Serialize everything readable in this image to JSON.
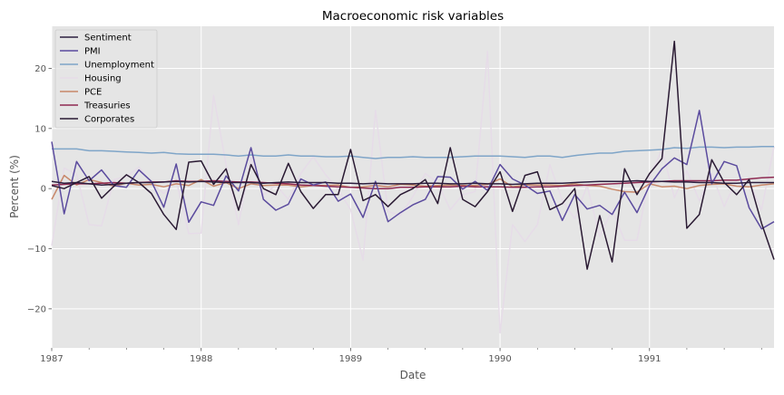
{
  "chart_data": {
    "type": "line",
    "title": "Macroeconomic risk variables",
    "xlabel": "Date",
    "ylabel": "Percent (%)",
    "xlim": [
      "1987-01",
      "1991-11"
    ],
    "ylim": [
      -26.5,
      27
    ],
    "grid": true,
    "legend_position": "top-left",
    "x_ticks": [
      "1987",
      "1988",
      "1989",
      "1990",
      "1991"
    ],
    "y_ticks": [
      -20,
      -10,
      0,
      10,
      20
    ],
    "x": [
      "1987-01",
      "1987-02",
      "1987-03",
      "1987-04",
      "1987-05",
      "1987-06",
      "1987-07",
      "1987-08",
      "1987-09",
      "1987-10",
      "1987-11",
      "1987-12",
      "1988-01",
      "1988-02",
      "1988-03",
      "1988-04",
      "1988-05",
      "1988-06",
      "1988-07",
      "1988-08",
      "1988-09",
      "1988-10",
      "1988-11",
      "1988-12",
      "1989-01",
      "1989-02",
      "1989-03",
      "1989-04",
      "1989-05",
      "1989-06",
      "1989-07",
      "1989-08",
      "1989-09",
      "1989-10",
      "1989-11",
      "1989-12",
      "1990-01",
      "1990-02",
      "1990-03",
      "1990-04",
      "1990-05",
      "1990-06",
      "1990-07",
      "1990-08",
      "1990-09",
      "1990-10",
      "1990-11",
      "1990-12",
      "1991-01",
      "1991-02",
      "1991-03",
      "1991-04",
      "1991-05",
      "1991-06",
      "1991-07",
      "1991-08",
      "1991-09",
      "1991-10",
      "1991-11"
    ],
    "series": [
      {
        "name": "Sentiment",
        "color": "#2d1e3e",
        "values": [
          1.2,
          0.9,
          1.0,
          0.8,
          0.6,
          0.7,
          0.9,
          1.0,
          1.0,
          1.1,
          1.2,
          1.1,
          1.2,
          1.1,
          1.0,
          1.0,
          1.0,
          0.9,
          1.0,
          1.1,
          1.0,
          1.0,
          1.0,
          0.9,
          0.9,
          0.8,
          0.9,
          0.8,
          0.8,
          0.8,
          0.9,
          0.9,
          0.8,
          0.8,
          0.9,
          0.8,
          0.8,
          0.7,
          0.8,
          0.9,
          0.9,
          0.9,
          1.0,
          1.1,
          1.2,
          1.2,
          1.2,
          1.3,
          1.2,
          1.2,
          1.1,
          1.1,
          1.0,
          1.0,
          0.9,
          0.9,
          1.0,
          1.0,
          1.0
        ]
      },
      {
        "name": "PMI",
        "color": "#5b4b9e",
        "values": [
          7.8,
          -4.2,
          4.5,
          1.3,
          3.1,
          0.5,
          0.2,
          3.1,
          1.2,
          -3.1,
          4.1,
          -5.6,
          -2.2,
          -2.8,
          2.1,
          -0.4,
          6.8,
          -1.8,
          -3.6,
          -2.6,
          1.6,
          0.6,
          1.1,
          -2.1,
          -0.9,
          -4.8,
          1.2,
          -5.5,
          -4.0,
          -2.7,
          -1.8,
          2.0,
          1.9,
          -0.1,
          1.2,
          -0.3,
          4.0,
          1.6,
          0.6,
          -0.8,
          -0.4,
          -5.3,
          -1.0,
          -3.4,
          -2.8,
          -4.3,
          -0.6,
          -4.0,
          0.5,
          3.3,
          5.1,
          4.0,
          13.0,
          0.8,
          4.5,
          3.8,
          -3.2,
          -6.7,
          -5.5
        ]
      },
      {
        "name": "Unemployment",
        "color": "#7fa5c8",
        "values": [
          6.6,
          6.6,
          6.6,
          6.3,
          6.3,
          6.2,
          6.1,
          6.0,
          5.9,
          6.0,
          5.8,
          5.7,
          5.7,
          5.7,
          5.6,
          5.4,
          5.6,
          5.4,
          5.4,
          5.6,
          5.4,
          5.4,
          5.3,
          5.3,
          5.4,
          5.2,
          5.0,
          5.2,
          5.2,
          5.3,
          5.2,
          5.2,
          5.2,
          5.3,
          5.4,
          5.4,
          5.4,
          5.3,
          5.2,
          5.4,
          5.4,
          5.2,
          5.5,
          5.7,
          5.9,
          5.9,
          6.2,
          6.3,
          6.4,
          6.5,
          6.8,
          6.7,
          6.9,
          6.9,
          6.8,
          6.9,
          6.9,
          7.0,
          7.0
        ]
      },
      {
        "name": "Housing",
        "color": "#e6dce8",
        "values": [
          -9.5,
          3.4,
          2.4,
          -6.0,
          -6.2,
          1.5,
          2.0,
          3.6,
          0.8,
          -0.8,
          1.4,
          -7.5,
          -7.4,
          15.5,
          4.0,
          -6.0,
          5.2,
          -1.1,
          0.6,
          -1.8,
          2.5,
          5.3,
          2.3,
          -0.2,
          -3.5,
          -11.9,
          13.0,
          -3.8,
          -4.5,
          -1.3,
          2.5,
          1.0,
          -3.5,
          -1.0,
          -0.5,
          22.8,
          -24.0,
          -6.0,
          -8.8,
          -6.0,
          4.0,
          -2.0,
          -5.0,
          0.5,
          -8.0,
          -3.5,
          -8.6,
          -8.6,
          2.0,
          6.5,
          -1.5,
          3.0,
          -2.0,
          2.5,
          -3.0,
          1.5,
          1.0,
          -3.5,
          7.0
        ]
      },
      {
        "name": "PCE",
        "color": "#c8886a",
        "values": [
          -1.8,
          2.2,
          0.6,
          1.5,
          1.0,
          0.4,
          0.9,
          0.6,
          0.7,
          0.3,
          0.8,
          0.5,
          1.5,
          0.4,
          1.0,
          0.0,
          0.8,
          0.5,
          0.6,
          0.6,
          0.3,
          0.5,
          0.5,
          0.6,
          0.2,
          0.3,
          0.5,
          0.3,
          0.7,
          0.6,
          0.4,
          0.5,
          0.6,
          0.5,
          0.5,
          0.7,
          1.6,
          0.3,
          0.6,
          0.6,
          0.6,
          0.5,
          0.8,
          0.5,
          0.4,
          -0.1,
          -0.5,
          -0.6,
          0.8,
          0.3,
          0.4,
          0.0,
          0.5,
          0.7,
          0.8,
          0.4,
          0.3,
          0.6,
          0.8
        ]
      },
      {
        "name": "Treasuries",
        "color": "#8e2a52",
        "values": [
          0.6,
          0.7,
          0.8,
          0.8,
          0.9,
          1.0,
          0.9,
          1.0,
          1.1,
          1.1,
          1.3,
          1.2,
          1.2,
          1.3,
          1.2,
          1.1,
          1.1,
          1.0,
          0.9,
          0.8,
          0.6,
          0.5,
          0.4,
          0.3,
          0.2,
          0.1,
          0.0,
          0.0,
          0.2,
          0.2,
          0.3,
          0.3,
          0.3,
          0.4,
          0.3,
          0.3,
          0.3,
          0.2,
          0.2,
          0.3,
          0.3,
          0.4,
          0.5,
          0.6,
          0.7,
          0.8,
          0.9,
          1.0,
          1.1,
          1.2,
          1.3,
          1.3,
          1.3,
          1.3,
          1.4,
          1.4,
          1.6,
          1.8,
          1.9
        ]
      },
      {
        "name": "Corporates",
        "color": "#2a1a33",
        "values": [
          0.5,
          0.0,
          1.0,
          2.0,
          -1.6,
          0.4,
          2.3,
          1.0,
          -0.8,
          -4.3,
          -6.8,
          4.4,
          4.6,
          0.7,
          3.3,
          -3.6,
          4.0,
          0.0,
          -1.0,
          4.2,
          -0.5,
          -3.3,
          -1.0,
          -1.0,
          6.5,
          -2.0,
          -1.0,
          -3.0,
          -1.0,
          0.0,
          1.5,
          -2.5,
          6.8,
          -1.8,
          -3.0,
          -0.5,
          2.8,
          -3.8,
          2.2,
          2.8,
          -3.5,
          -2.5,
          0.0,
          -13.4,
          -4.5,
          -12.2,
          3.3,
          -1.0,
          2.5,
          5.0,
          24.5,
          -6.6,
          -4.3,
          4.8,
          1.0,
          -1.0,
          1.5,
          -5.8,
          -11.8
        ]
      }
    ]
  }
}
